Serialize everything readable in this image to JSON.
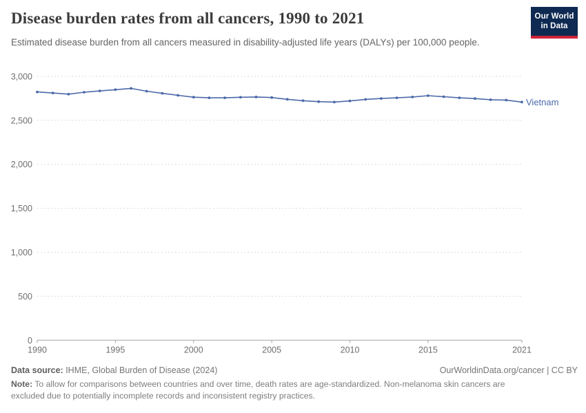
{
  "header": {
    "title": "Disease burden rates from all cancers, 1990 to 2021",
    "subtitle": "Estimated disease burden from all cancers measured in disability-adjusted life years (DALYs) per 100,000 people.",
    "logo_line1": "Our World",
    "logo_line2": "in Data"
  },
  "chart_data": {
    "type": "line",
    "title": "Disease burden rates from all cancers, 1990 to 2021",
    "ylabel": "",
    "xlabel": "",
    "x": [
      1990,
      1991,
      1992,
      1993,
      1994,
      1995,
      1996,
      1997,
      1998,
      1999,
      2000,
      2001,
      2002,
      2003,
      2004,
      2005,
      2006,
      2007,
      2008,
      2009,
      2010,
      2011,
      2012,
      2013,
      2014,
      2015,
      2016,
      2017,
      2018,
      2019,
      2020,
      2021
    ],
    "series": [
      {
        "name": "Vietnam",
        "color": "#4a69a8",
        "values": [
          2822,
          2811,
          2797,
          2819,
          2834,
          2848,
          2863,
          2831,
          2807,
          2784,
          2763,
          2756,
          2756,
          2762,
          2765,
          2759,
          2739,
          2723,
          2712,
          2707,
          2721,
          2738,
          2748,
          2756,
          2765,
          2780,
          2768,
          2756,
          2747,
          2734,
          2730,
          2707
        ]
      }
    ],
    "ylim": [
      0,
      3000
    ],
    "yticks": [
      0,
      500,
      1000,
      1500,
      2000,
      2500,
      3000
    ],
    "xticks": [
      1990,
      1995,
      2000,
      2005,
      2010,
      2015,
      2021
    ],
    "grid": "horizontal-dashed",
    "legend_position": "end-of-line-label",
    "marker": "circle"
  },
  "footer": {
    "datasource_label": "Data source:",
    "datasource_value": " IHME, Global Burden of Disease (2024)",
    "rights": "OurWorldinData.org/cancer | CC BY",
    "note_label": "Note:",
    "note_value": " To allow for comparisons between countries and over time, death rates are age-standardized. Non-melanoma skin cancers are excluded due to potentially incomplete records and inconsistent registry practices."
  },
  "colors": {
    "series_blue": "#4a69a8",
    "gridline": "#dcdcdc",
    "axis_line": "#a3a3a3",
    "tick_label": "#6e6e6e",
    "title_text": "#3b3b3b",
    "subtitle_text": "#646464",
    "logo_bg": "#0f2a52",
    "logo_stripe": "#cf2437"
  }
}
